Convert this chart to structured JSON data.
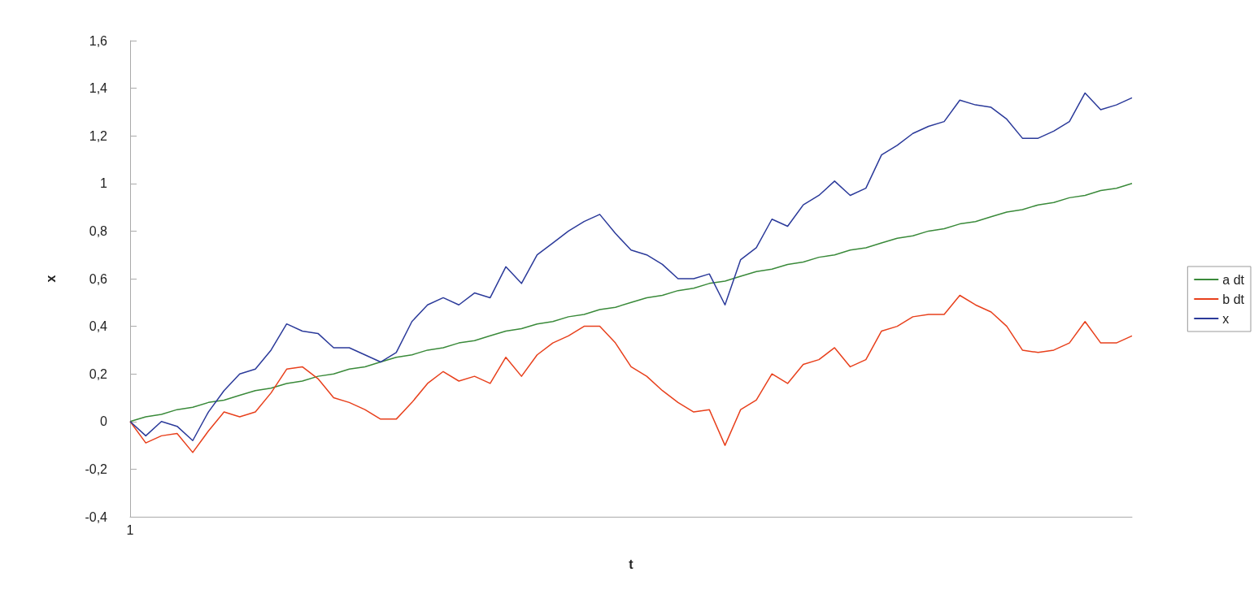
{
  "chart_data": {
    "type": "line",
    "xlabel": "t",
    "ylabel": "x",
    "categories": [
      "1",
      null,
      null,
      null,
      null,
      null,
      null,
      null,
      null,
      null,
      null,
      null,
      null,
      null,
      null,
      null,
      null,
      null,
      null,
      null,
      null,
      null,
      null,
      null,
      null,
      null,
      null,
      null,
      null,
      null,
      null,
      null,
      null,
      null,
      null,
      null,
      null,
      null,
      null,
      null,
      null,
      null,
      null,
      null,
      null,
      null,
      null,
      null,
      null,
      null,
      null,
      null,
      null,
      null,
      null,
      null,
      null,
      null,
      null,
      null,
      null,
      null,
      null,
      null,
      null
    ],
    "series": [
      {
        "name": "a dt",
        "color": "#3a8a3a",
        "values": [
          0,
          0.02,
          0.03,
          0.05,
          0.06,
          0.08,
          0.09,
          0.11,
          0.13,
          0.14,
          0.16,
          0.17,
          0.19,
          0.2,
          0.22,
          0.23,
          0.25,
          0.27,
          0.28,
          0.3,
          0.31,
          0.33,
          0.34,
          0.36,
          0.38,
          0.39,
          0.41,
          0.42,
          0.44,
          0.45,
          0.47,
          0.48,
          0.5,
          0.52,
          0.53,
          0.55,
          0.56,
          0.58,
          0.59,
          0.61,
          0.63,
          0.64,
          0.66,
          0.67,
          0.69,
          0.7,
          0.72,
          0.73,
          0.75,
          0.77,
          0.78,
          0.8,
          0.81,
          0.83,
          0.84,
          0.86,
          0.88,
          0.89,
          0.91,
          0.92,
          0.94,
          0.95,
          0.97,
          0.98,
          1
        ]
      },
      {
        "name": "b dt",
        "color": "#e8401c",
        "values": [
          0,
          -0.09,
          -0.06,
          -0.05,
          -0.13,
          -0.04,
          0.04,
          0.02,
          0.04,
          0.12,
          0.22,
          0.23,
          0.18,
          0.1,
          0.08,
          0.05,
          0.01,
          0.01,
          0.08,
          0.16,
          0.21,
          0.17,
          0.19,
          0.16,
          0.27,
          0.19,
          0.28,
          0.33,
          0.36,
          0.4,
          0.4,
          0.33,
          0.23,
          0.19,
          0.13,
          0.08,
          0.04,
          0.05,
          -0.1,
          0.05,
          0.09,
          0.2,
          0.16,
          0.24,
          0.26,
          0.31,
          0.23,
          0.26,
          0.38,
          0.4,
          0.44,
          0.45,
          0.45,
          0.53,
          0.49,
          0.46,
          0.4,
          0.3,
          0.29,
          0.3,
          0.33,
          0.42,
          0.33,
          0.33,
          0.36
        ]
      },
      {
        "name": "x",
        "color": "#2b3a9a",
        "values": [
          0,
          -0.06,
          0,
          -0.02,
          -0.08,
          0.04,
          0.13,
          0.2,
          0.22,
          0.3,
          0.41,
          0.38,
          0.37,
          0.31,
          0.31,
          0.28,
          0.25,
          0.29,
          0.42,
          0.49,
          0.52,
          0.49,
          0.54,
          0.52,
          0.65,
          0.58,
          0.7,
          0.75,
          0.8,
          0.84,
          0.87,
          0.79,
          0.72,
          0.7,
          0.66,
          0.6,
          0.6,
          0.62,
          0.49,
          0.68,
          0.73,
          0.85,
          0.82,
          0.91,
          0.95,
          1.01,
          0.95,
          0.98,
          1.12,
          1.16,
          1.21,
          1.24,
          1.26,
          1.35,
          1.33,
          1.32,
          1.27,
          1.19,
          1.19,
          1.22,
          1.26,
          1.38,
          1.31,
          1.33,
          1.36
        ]
      }
    ],
    "ylim": [
      -0.4,
      1.6
    ],
    "yticks": [
      {
        "value": -0.4,
        "label": "-0,4"
      },
      {
        "value": -0.2,
        "label": "-0,2"
      },
      0,
      {
        "value": 0.2,
        "label": "0,2"
      },
      {
        "value": 0.4,
        "label": "0,4"
      },
      {
        "value": 0.6,
        "label": "0,6"
      },
      {
        "value": 0.8,
        "label": "0,8"
      },
      1,
      {
        "value": 1.2,
        "label": "1,2"
      },
      {
        "value": 1.4,
        "label": "1,4"
      },
      {
        "value": 1.6,
        "label": "1,6"
      }
    ],
    "grid": false,
    "legend": "right",
    "marker": "none",
    "line_style": "solid"
  }
}
